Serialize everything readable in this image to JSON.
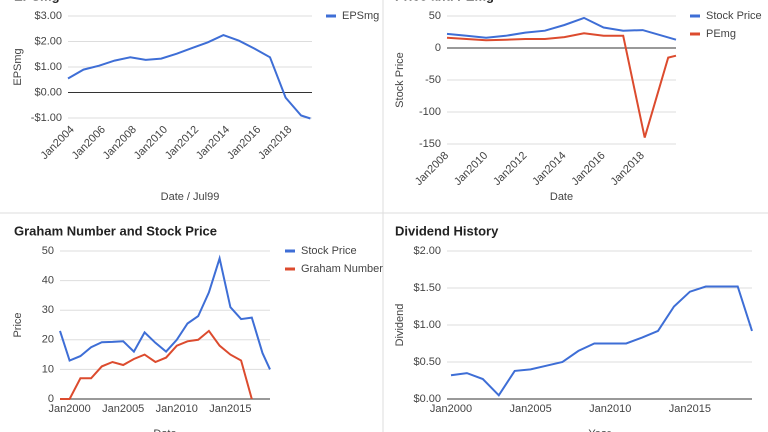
{
  "chart_data": [
    {
      "type": "line",
      "title": "EPSmg",
      "x_label": "Date / Jul99",
      "y_label": "EPSmg",
      "legend": "right",
      "grid": true,
      "x_tick_angle": -45,
      "xlim": [
        2003.7,
        2019.4
      ],
      "ylim": [
        -1,
        3
      ],
      "xticks": [
        {
          "value": 2004,
          "label": "Jan2004"
        },
        {
          "value": 2006,
          "label": "Jan2006"
        },
        {
          "value": 2008,
          "label": "Jan2008"
        },
        {
          "value": 2010,
          "label": "Jan2010"
        },
        {
          "value": 2012,
          "label": "Jan2012"
        },
        {
          "value": 2014,
          "label": "Jan2014"
        },
        {
          "value": 2016,
          "label": "Jan2016"
        },
        {
          "value": 2018,
          "label": "Jan2018"
        }
      ],
      "yticks": [
        {
          "value": -1,
          "label": "-$1.00"
        },
        {
          "value": 0,
          "label": "$0.00"
        },
        {
          "value": 1,
          "label": "$1.00"
        },
        {
          "value": 2,
          "label": "$2.00"
        },
        {
          "value": 3,
          "label": "$3.00"
        }
      ],
      "series": [
        {
          "name": "EPSmg",
          "color": "#3e6ed6",
          "x": [
            2003.7,
            2004.7,
            2005.7,
            2006.7,
            2007.7,
            2008.7,
            2009.7,
            2010.7,
            2011.7,
            2012.7,
            2013.7,
            2014.7,
            2015.7,
            2016.7,
            2017.7,
            2018.7,
            2019.3
          ],
          "values": [
            0.55,
            0.9,
            1.05,
            1.25,
            1.38,
            1.28,
            1.33,
            1.52,
            1.75,
            1.97,
            2.25,
            2.03,
            1.72,
            1.38,
            -0.2,
            -0.9,
            -1.02
          ]
        }
      ]
    },
    {
      "type": "line",
      "title": "Price and PEmg",
      "x_label": "Date",
      "y_label": "Stock Price",
      "legend": "right",
      "grid": true,
      "x_tick_angle": -45,
      "xlim": [
        2008,
        2019.7
      ],
      "ylim": [
        -150,
        50
      ],
      "xticks": [
        {
          "value": 2008,
          "label": "Jan2008"
        },
        {
          "value": 2010,
          "label": "Jan2010"
        },
        {
          "value": 2012,
          "label": "Jan2012"
        },
        {
          "value": 2014,
          "label": "Jan2014"
        },
        {
          "value": 2016,
          "label": "Jan2016"
        },
        {
          "value": 2018,
          "label": "Jan2018"
        }
      ],
      "yticks": [
        -150,
        -100,
        -50,
        0,
        50
      ],
      "series": [
        {
          "name": "Stock Price",
          "color": "#3e6ed6",
          "x": [
            2008,
            2009,
            2010,
            2011,
            2012,
            2013,
            2014,
            2015,
            2016,
            2017,
            2018,
            2019.7
          ],
          "values": [
            22,
            19,
            16,
            19,
            24,
            27,
            36,
            47,
            32,
            27,
            28,
            13
          ]
        },
        {
          "name": "PEmg",
          "color": "#dc4b2e",
          "x": [
            2008,
            2009,
            2010,
            2011,
            2012,
            2013,
            2014,
            2015,
            2016,
            2017,
            2018.1,
            2019.3,
            2019.7
          ],
          "values": [
            16,
            14,
            12,
            13,
            14,
            14,
            17,
            23,
            19,
            19,
            -140,
            -15,
            -12
          ]
        }
      ]
    },
    {
      "type": "line",
      "title": "Graham Number and Stock Price",
      "x_label": "Date",
      "y_label": "Price",
      "legend": "right",
      "grid": true,
      "x_tick_angle": 0,
      "xlim": [
        1999.1,
        2018.7
      ],
      "ylim": [
        0,
        50
      ],
      "xticks": [
        {
          "value": 2000,
          "label": "Jan2000"
        },
        {
          "value": 2005,
          "label": "Jan2005"
        },
        {
          "value": 2010,
          "label": "Jan2010"
        },
        {
          "value": 2015,
          "label": "Jan2015"
        }
      ],
      "yticks": [
        0,
        10,
        20,
        30,
        40,
        50
      ],
      "series": [
        {
          "name": "Stock Price",
          "color": "#3e6ed6",
          "x": [
            1999.1,
            2000,
            2001,
            2002,
            2003,
            2004,
            2005,
            2006,
            2007,
            2008,
            2009,
            2010,
            2011,
            2012,
            2013,
            2014,
            2015,
            2016,
            2017,
            2018,
            2018.7
          ],
          "values": [
            23,
            13,
            14.5,
            17.5,
            19.2,
            19.3,
            19.5,
            16,
            22.5,
            19,
            16,
            20,
            25.5,
            28,
            36,
            47.5,
            31,
            27,
            27.5,
            15.5,
            10
          ]
        },
        {
          "name": "Graham Number",
          "color": "#dc4b2e",
          "x": [
            1999.1,
            2000,
            2001,
            2002,
            2003,
            2004,
            2005,
            2006,
            2007,
            2008,
            2009,
            2010,
            2011,
            2012,
            2013,
            2014,
            2015,
            2016,
            2017
          ],
          "values": [
            0,
            0,
            7,
            7,
            11,
            12.5,
            11.5,
            13.5,
            15,
            12.5,
            14,
            18,
            19.5,
            20,
            23,
            18,
            15,
            13,
            0
          ]
        }
      ]
    },
    {
      "type": "line",
      "title": "Dividend History",
      "x_label": "Year",
      "y_label": "Dividend",
      "grid": true,
      "x_tick_angle": 0,
      "xlim": [
        1999.75,
        2018.9
      ],
      "ylim": [
        0,
        2
      ],
      "xticks": [
        {
          "value": 2000,
          "label": "Jan2000"
        },
        {
          "value": 2005,
          "label": "Jan2005"
        },
        {
          "value": 2010,
          "label": "Jan2010"
        },
        {
          "value": 2015,
          "label": "Jan2015"
        }
      ],
      "yticks": [
        {
          "value": 0,
          "label": "$0.00"
        },
        {
          "value": 0.5,
          "label": "$0.50"
        },
        {
          "value": 1,
          "label": "$1.00"
        },
        {
          "value": 1.5,
          "label": "$1.50"
        },
        {
          "value": 2,
          "label": "$2.00"
        }
      ],
      "series": [
        {
          "color": "#3e6ed6",
          "x": [
            2000,
            2001,
            2002,
            2003,
            2004,
            2005,
            2006,
            2007,
            2008,
            2009,
            2010,
            2011,
            2012,
            2013,
            2014,
            2015,
            2016,
            2017,
            2018,
            2018.9
          ],
          "values": [
            0.32,
            0.35,
            0.27,
            0.05,
            0.38,
            0.4,
            0.45,
            0.5,
            0.65,
            0.75,
            0.75,
            0.75,
            0.83,
            0.92,
            1.25,
            1.45,
            1.52,
            1.52,
            1.52,
            0.92
          ]
        }
      ]
    }
  ]
}
